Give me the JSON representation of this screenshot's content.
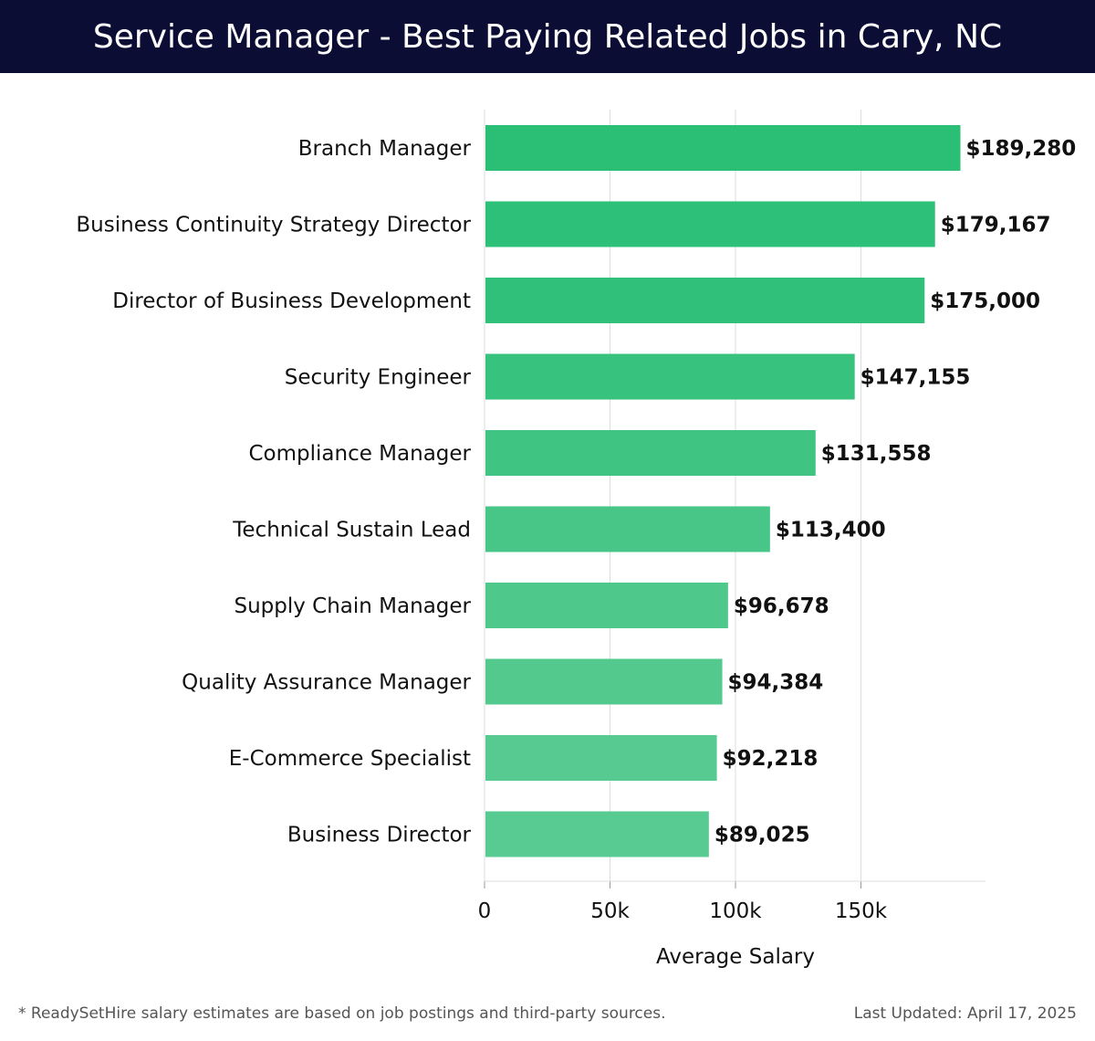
{
  "header": {
    "title": "Service Manager - Best Paying Related Jobs in Cary, NC"
  },
  "chart_data": {
    "type": "bar",
    "orientation": "horizontal",
    "categories": [
      "Branch Manager",
      "Business Continuity Strategy Director",
      "Director of Business Development",
      "Security Engineer",
      "Compliance Manager",
      "Technical Sustain Lead",
      "Supply Chain Manager",
      "Quality Assurance Manager",
      "E-Commerce Specialist",
      "Business Director"
    ],
    "values": [
      189280,
      179167,
      175000,
      147155,
      131558,
      113400,
      96678,
      94384,
      92218,
      89025
    ],
    "value_labels": [
      "$189,280",
      "$179,167",
      "$175,000",
      "$147,155",
      "$131,558",
      "$113,400",
      "$96,678",
      "$94,384",
      "$92,218",
      "$89,025"
    ],
    "bar_colors": [
      "#2bbf76",
      "#2dc078",
      "#30c07a",
      "#37c27d",
      "#3fc482",
      "#47c687",
      "#4ec88b",
      "#53c98e",
      "#56ca90",
      "#57cb91"
    ],
    "xlabel": "Average Salary",
    "ylabel": "",
    "xlim": [
      0,
      200000
    ],
    "xticks": [
      0,
      50000,
      100000,
      150000
    ],
    "xtick_labels": [
      "0",
      "50k",
      "100k",
      "150k"
    ],
    "grid": true
  },
  "footer": {
    "note": "* ReadySetHire salary estimates are based on job postings and third-party sources.",
    "updated": "Last Updated: April 17, 2025"
  }
}
